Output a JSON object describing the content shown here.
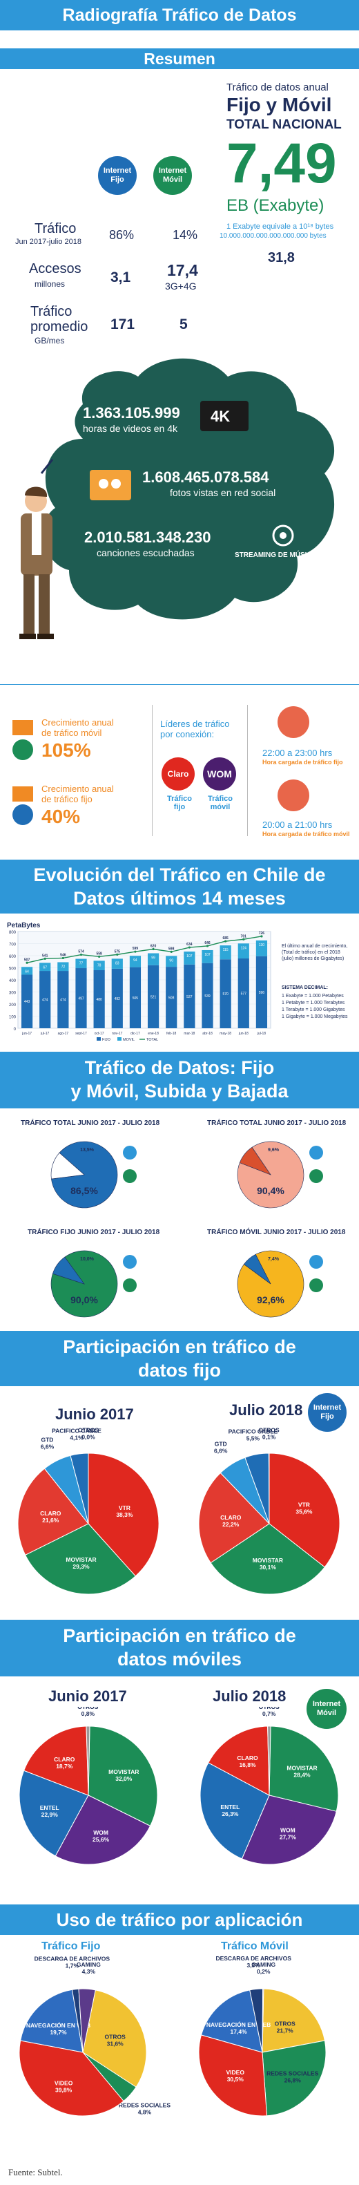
{
  "header": {
    "title": "Radiografía Tráfico de Datos"
  },
  "resumen": {
    "band": "Resumen",
    "icon_fijo": "Internet Fijo",
    "icon_movil": "Internet Móvil",
    "rows": [
      {
        "label": "Tráfico",
        "sub": "Jun 2017-julio 2018",
        "fijo": "86%",
        "movil": "14%"
      },
      {
        "label": "Accesos",
        "sub": "millones",
        "fijo": "3,1",
        "movil": "17,4",
        "movil_sub": "3G+4G"
      },
      {
        "label": "Tráfico promedio",
        "sub": "GB/mes",
        "fijo": "171",
        "movil": "5"
      }
    ],
    "total_caption1": "Tráfico de datos anual",
    "total_caption2": "Fijo y Móvil",
    "total_caption3": "TOTAL NACIONAL",
    "total_value": "7,49",
    "total_unit": "EB (Exabyte)",
    "exabyte_note": "1 Exabyte equivale a 10¹⁸ bytes",
    "exabyte_digits": "10.000.000.000.000.000.000 bytes",
    "side_value": "31,8"
  },
  "cloud": {
    "stat1_value": "1.363.105.999",
    "stat1_label": "horas de videos en 4k",
    "badge_4k": "4K",
    "stat2_value": "1.608.465.078.584",
    "stat2_label": "fotos vistas en red social",
    "stat3_value": "2.010.581.348.230",
    "stat3_label": "canciones escuchadas",
    "streaming_label": "STREAMING DE MÚSICA"
  },
  "growth": {
    "movil_caption": "Crecimiento anual de tráfico móvil",
    "movil_value": "105%",
    "fijo_caption": "Crecimiento anual de tráfico fijo",
    "fijo_value": "40%",
    "leaders_caption": "Líderes de tráfico por conexión:",
    "leader_fijo_brand": "Claro",
    "leader_fijo_label": "Tráfico fijo",
    "leader_movil_brand": "WOM",
    "leader_movil_label": "Tráfico móvil",
    "peak_fijo_time": "22:00 a 23:00 hrs",
    "peak_fijo_label": "Hora cargada de tráfico fijo",
    "peak_movil_time": "20:00 a 21:00 hrs",
    "peak_movil_label": "Hora cargada de tráfico móvil"
  },
  "evolution": {
    "band_line1": "Evolución del Tráfico en Chile de",
    "band_line2": "Datos últimos 14 meses",
    "unit": "PetaBytes",
    "note": "El último anual de crecimiento, (Total de tráfico) en el 2018 (julio) millones de Gigabytes)",
    "sistema_title": "SISTEMA DECIMAL:",
    "sistema_lines": [
      "1 Exabyte = 1.000 Petabytes",
      "1 Petabyte = 1.000 Terabytes",
      "1 Terabyte = 1.000 Gigabytes",
      "1 Gigabyte = 1.000 Megabytes"
    ]
  },
  "chart_data": [
    {
      "type": "bar",
      "title": "",
      "ylabel": "PetaBytes",
      "ylim": [
        0,
        800
      ],
      "categories": [
        "jun-17",
        "jul-17",
        "ago-17",
        "sept-17",
        "oct-17",
        "nov-17",
        "dic-17",
        "ene-18",
        "feb-18",
        "mar-18",
        "abr-18",
        "may-18",
        "jun-18",
        "jul-18"
      ],
      "series": [
        {
          "name": "FIJO",
          "values": [
            443,
            474,
            474,
            497,
            480,
            492,
            505,
            521,
            508,
            527,
            539,
            570,
            577,
            596
          ]
        },
        {
          "name": "MOVIL",
          "values": [
            64,
            67,
            72,
            77,
            78,
            83,
            94,
            99,
            90,
            107,
            107,
            115,
            124,
            130
          ]
        },
        {
          "name": "TOTAL",
          "values": [
            507,
            541,
            546,
            574,
            558,
            575,
            599,
            620,
            598,
            634,
            646,
            685,
            701,
            726
          ]
        }
      ]
    },
    {
      "type": "pie",
      "title": "TRÁFICO TOTAL JUNIO 2017 - JULIO 2018",
      "categories": [
        "Fijo",
        "Móvil"
      ],
      "values": [
        86.5,
        13.5
      ],
      "colors": [
        "#1f6db5",
        "#ffffff"
      ]
    },
    {
      "type": "pie",
      "title": "TRÁFICO TOTAL JUNIO 2017 - JULIO 2018",
      "categories": [
        "Bajada",
        "Subida"
      ],
      "values": [
        90.4,
        9.6
      ],
      "colors": [
        "#f4a793",
        "#d9502d"
      ]
    },
    {
      "type": "pie",
      "title": "TRÁFICO FIJO JUNIO 2017 - JULIO 2018",
      "categories": [
        "Bajada",
        "Subida"
      ],
      "values": [
        90.0,
        10.0
      ],
      "colors": [
        "#1c8d56",
        "#1f6db5"
      ]
    },
    {
      "type": "pie",
      "title": "TRÁFICO MÓVIL JUNIO 2017 - JULIO 2018",
      "categories": [
        "Bajada",
        "Subida"
      ],
      "values": [
        92.6,
        7.4
      ],
      "colors": [
        "#f6b51e",
        "#1f6db5"
      ]
    },
    {
      "type": "pie",
      "title": "Junio 2017",
      "categories": [
        "VTR",
        "MOVISTAR",
        "CLARO",
        "GTD",
        "PACIFICO CABLE",
        "OTROS"
      ],
      "values": [
        38.3,
        29.3,
        21.6,
        6.6,
        4.1,
        0.0
      ]
    },
    {
      "type": "pie",
      "title": "Julio 2018",
      "categories": [
        "VTR",
        "MOVISTAR",
        "CLARO",
        "GTD",
        "PACIFICO CABLE",
        "OTROS"
      ],
      "values": [
        35.6,
        30.1,
        22.2,
        6.6,
        5.5,
        0.1
      ]
    },
    {
      "type": "pie",
      "title": "Junio 2017",
      "categories": [
        "MOVISTAR",
        "WOM",
        "ENTEL",
        "CLARO",
        "OTROS"
      ],
      "values": [
        32.0,
        25.6,
        22.9,
        18.7,
        0.8
      ]
    },
    {
      "type": "pie",
      "title": "Julio 2018",
      "categories": [
        "MOVISTAR",
        "WOM",
        "ENTEL",
        "CLARO",
        "OTROS"
      ],
      "values": [
        28.4,
        27.7,
        26.3,
        16.8,
        0.7
      ]
    },
    {
      "type": "pie",
      "title": "Tráfico Fijo",
      "categories": [
        "OTROS",
        "REDES SOCIALES",
        "VIDEO",
        "NAVEGACIÓN EN WEB",
        "DESCARGA DE ARCHIVOS",
        "GAMING"
      ],
      "values": [
        31.6,
        4.8,
        39.8,
        19.7,
        1.7,
        4.3
      ]
    },
    {
      "type": "pie",
      "title": "Tráfico Móvil",
      "categories": [
        "OTROS",
        "REDES SOCIALES",
        "VIDEO",
        "NAVEGACIÓN EN WEB",
        "DESCARGA DE ARCHIVOS",
        "GAMING"
      ],
      "values": [
        21.7,
        26.8,
        30.5,
        17.4,
        3.3,
        0.2
      ]
    }
  ],
  "updown": {
    "band_line1": "Tráfico de Datos: Fijo",
    "band_line2": "y Móvil, Subida y Bajada",
    "d1_label": "86,5%",
    "d1_small": "13,5%",
    "d2_label": "90,4%",
    "d2_small": "9,6%",
    "d3_label": "90,0%",
    "d3_small": "10,0%",
    "d4_label": "92,6%",
    "d4_small": "7,4%"
  },
  "fijo_share": {
    "band_line1": "Participación en tráfico de",
    "band_line2": "datos fijo",
    "badge": "Internet Fijo"
  },
  "movil_share": {
    "band_line1": "Participación en tráfico de",
    "band_line2": "datos móviles",
    "badge": "Internet Móvil"
  },
  "apps": {
    "band": "Uso de tráfico por aplicación"
  },
  "colors": {
    "band": "#2e97d8",
    "navy": "#1e2d5a",
    "green": "#1c8d56",
    "orange": "#f08a24",
    "bar_fijo": "#1f6db5",
    "bar_movil": "#2ea7d8",
    "line_total": "#1c8d56"
  },
  "footer": "Fuente: Subtel."
}
